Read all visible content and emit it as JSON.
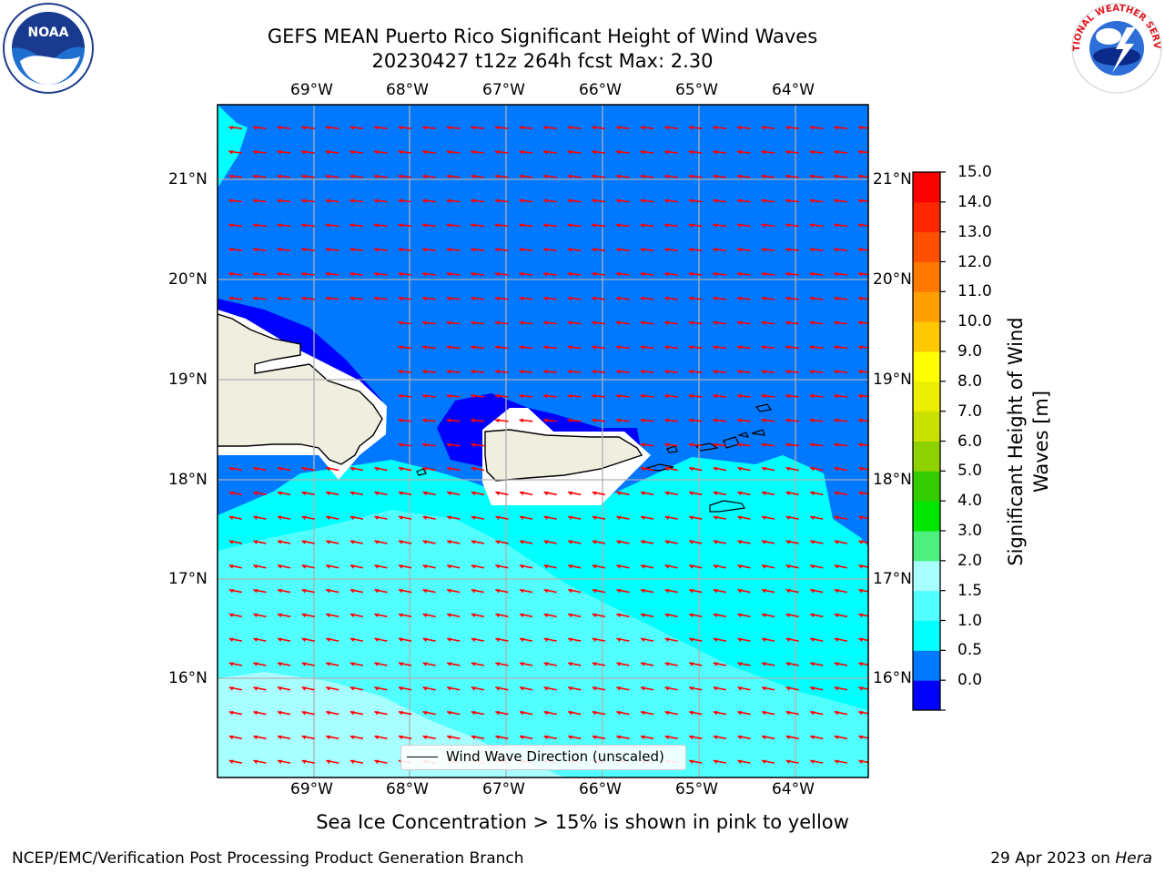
{
  "title_line1": "GEFS MEAN Puerto Rico Significant Height of Wind Waves",
  "title_line2": "20230427 t12z 264h fcst   Max: 2.30",
  "lon_ticks": [
    "69°W",
    "68°W",
    "67°W",
    "66°W",
    "65°W",
    "64°W"
  ],
  "lat_ticks": [
    "21°N",
    "20°N",
    "19°N",
    "18°N",
    "17°N",
    "16°N"
  ],
  "colorbar": {
    "label": "Significant Height of Wind Waves [m]",
    "ticks": [
      "15.0",
      "14.0",
      "13.0",
      "12.0",
      "11.0",
      "10.0",
      "9.0",
      "8.0",
      "7.0",
      "6.0",
      "5.0",
      "4.0",
      "3.0",
      "2.0",
      "1.5",
      "1.0",
      "0.5",
      "0.0"
    ],
    "colors": [
      "#0000ff",
      "#0078ff",
      "#00ffff",
      "#52ffff",
      "#a8ffff",
      "#4df07f",
      "#00e600",
      "#33cc00",
      "#8ed100",
      "#c8e000",
      "#ecf000",
      "#ffff00",
      "#ffc800",
      "#ffa000",
      "#ff7800",
      "#ff5000",
      "#ff2800",
      "#ff0000"
    ]
  },
  "legend_label": "Wind Wave Direction (unscaled)",
  "subtitle": "Sea Ice Concentration > 15% is shown in pink to yellow",
  "footer_left": "NCEP/EMC/Verification Post Processing Product Generation Branch",
  "footer_right_prefix": "29 Apr 2023 on ",
  "footer_right_host": "Hera",
  "logos": {
    "left": "NOAA",
    "right": "NATIONAL WEATHER SERVICE"
  },
  "colors": {
    "arrow": "#ff0000",
    "land": "#efeedf",
    "grid": "#b0b0b0"
  }
}
